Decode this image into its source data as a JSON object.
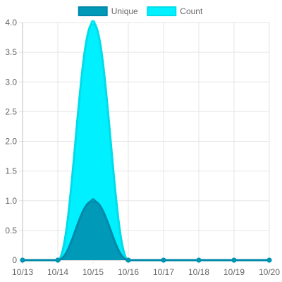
{
  "chart_data": {
    "type": "area",
    "categories": [
      "10/13",
      "10/14",
      "10/15",
      "10/16",
      "10/17",
      "10/18",
      "10/19",
      "10/20"
    ],
    "series": [
      {
        "name": "Unique",
        "values": [
          0,
          0,
          1,
          0,
          0,
          0,
          0,
          0
        ],
        "fill_color": "#0099b8",
        "line_color": "#0088a8"
      },
      {
        "name": "Count",
        "values": [
          0,
          0,
          4,
          0,
          0,
          0,
          0,
          0
        ],
        "fill_color": "#00f0ff",
        "line_color": "#00dce8"
      }
    ],
    "ylim": [
      0,
      4
    ],
    "y_ticks": [
      "0",
      "0.5",
      "1.0",
      "1.5",
      "2.0",
      "2.5",
      "3.0",
      "3.5",
      "4.0"
    ],
    "grid": true,
    "legend_position": "top-center",
    "curve": "smooth"
  }
}
